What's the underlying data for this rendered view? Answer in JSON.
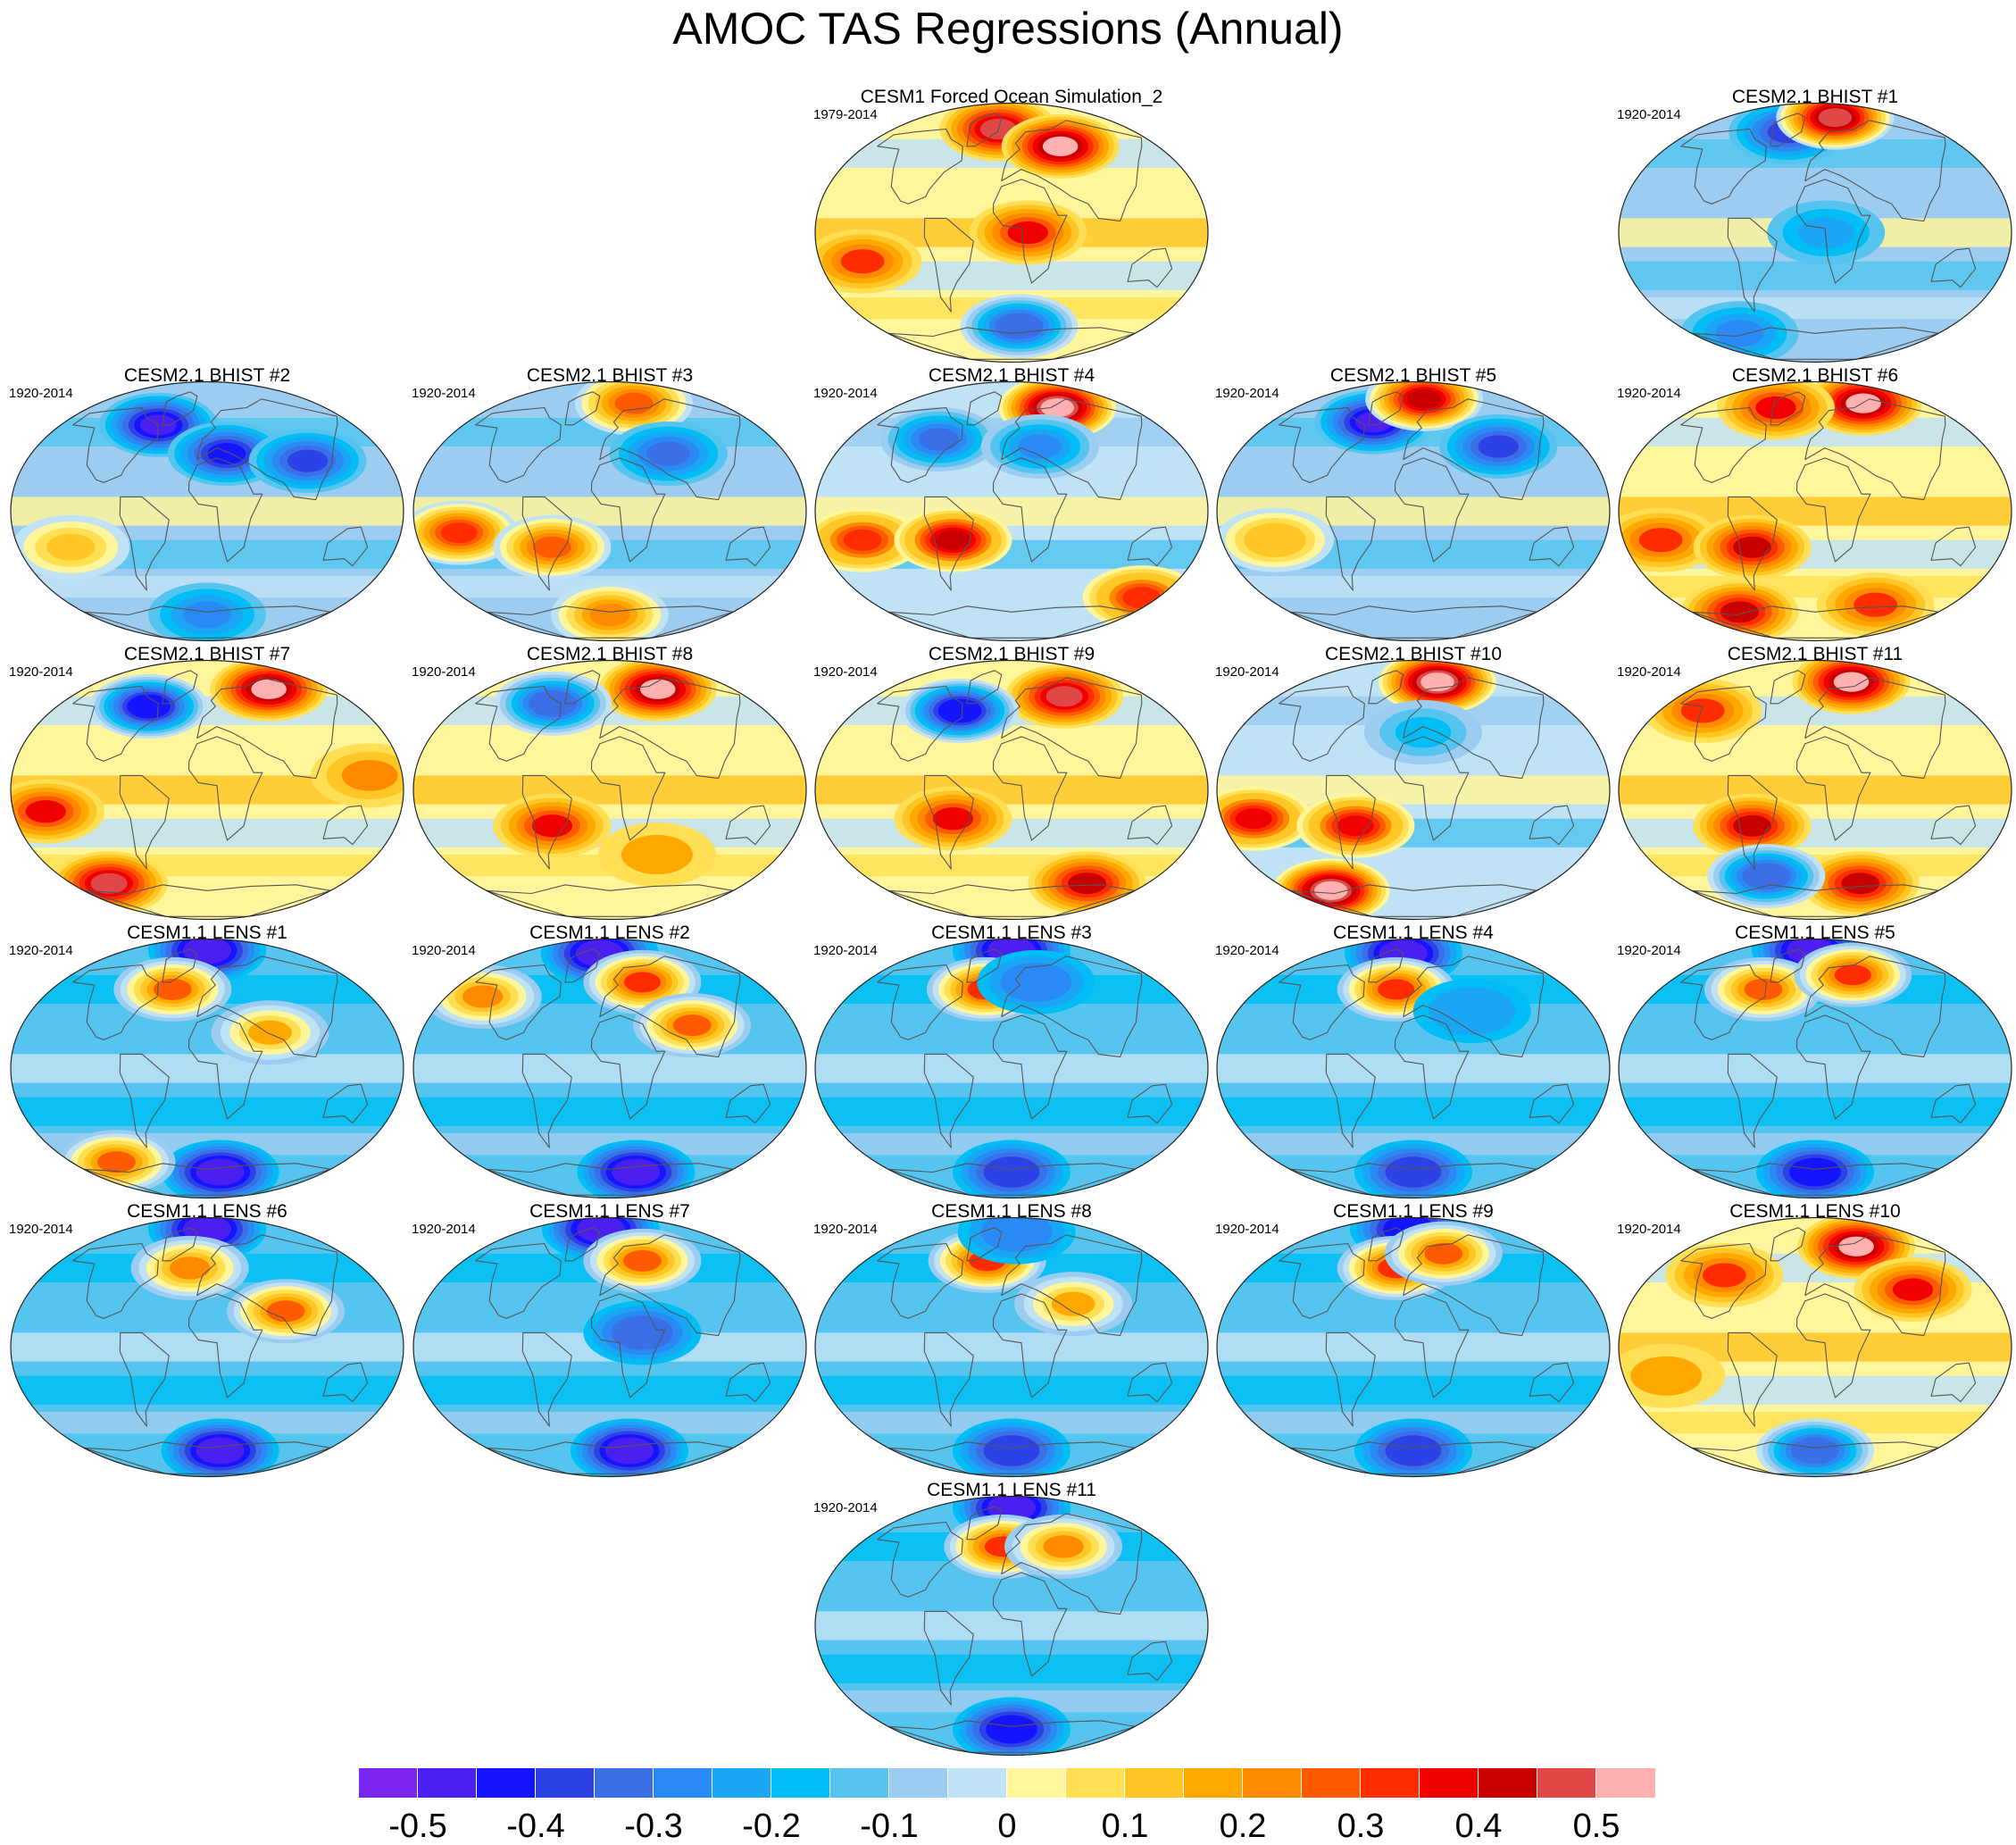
{
  "title": "AMOC TAS Regressions (Annual)",
  "panels": [
    {
      "title": "CESM1 Forced Ocean Simulation_2",
      "years": "1979-2014",
      "pattern": "warm",
      "hotspots": [
        {
          "lon": -20,
          "lat": 72,
          "v": 0.45
        },
        {
          "lon": 60,
          "lat": 60,
          "v": 0.5
        },
        {
          "lon": 15,
          "lat": 0,
          "v": 0.35
        },
        {
          "lon": -140,
          "lat": -20,
          "v": 0.3
        },
        {
          "lon": 10,
          "lat": -65,
          "v": -0.35
        }
      ]
    },
    {
      "title": "CESM2.1 BHIST #1",
      "years": "1920-2014",
      "pattern": "cold-north",
      "hotspots": [
        {
          "lon": -40,
          "lat": 70,
          "v": -0.4
        },
        {
          "lon": 40,
          "lat": 80,
          "v": 0.45
        },
        {
          "lon": 10,
          "lat": 0,
          "v": -0.25
        },
        {
          "lon": -110,
          "lat": -70,
          "v": -0.3
        }
      ]
    },
    {
      "title": "CESM2.1 BHIST #2",
      "years": "1920-2014",
      "pattern": "cold-north",
      "hotspots": [
        {
          "lon": -60,
          "lat": 60,
          "v": -0.5
        },
        {
          "lon": 20,
          "lat": 40,
          "v": -0.45
        },
        {
          "lon": 100,
          "lat": 35,
          "v": -0.4
        },
        {
          "lon": -130,
          "lat": -25,
          "v": 0.1
        },
        {
          "lon": 0,
          "lat": -72,
          "v": -0.3
        }
      ]
    },
    {
      "title": "CESM2.1 BHIST #3",
      "years": "1920-2014",
      "pattern": "cold-north",
      "hotspots": [
        {
          "lon": 40,
          "lat": 75,
          "v": 0.25
        },
        {
          "lon": -140,
          "lat": -15,
          "v": 0.3
        },
        {
          "lon": -55,
          "lat": -25,
          "v": 0.25
        },
        {
          "lon": 60,
          "lat": 40,
          "v": -0.35
        },
        {
          "lon": 0,
          "lat": -72,
          "v": 0.2
        }
      ]
    },
    {
      "title": "CESM2.1 BHIST #4",
      "years": "1920-2014",
      "pattern": "mixed",
      "hotspots": [
        {
          "lon": 70,
          "lat": 72,
          "v": 0.5
        },
        {
          "lon": -140,
          "lat": -20,
          "v": 0.3
        },
        {
          "lon": -55,
          "lat": -20,
          "v": 0.4
        },
        {
          "lon": -80,
          "lat": 50,
          "v": -0.35
        },
        {
          "lon": 30,
          "lat": 45,
          "v": -0.3
        },
        {
          "lon": 160,
          "lat": -60,
          "v": 0.3
        }
      ]
    },
    {
      "title": "CESM2.1 BHIST #5",
      "years": "1920-2014",
      "pattern": "cold-north",
      "hotspots": [
        {
          "lon": -50,
          "lat": 62,
          "v": -0.5
        },
        {
          "lon": 20,
          "lat": 78,
          "v": 0.4
        },
        {
          "lon": 90,
          "lat": 45,
          "v": -0.4
        },
        {
          "lon": -130,
          "lat": -20,
          "v": 0.15
        }
      ]
    },
    {
      "title": "CESM2.1 BHIST #6",
      "years": "1920-2014",
      "pattern": "warm",
      "hotspots": [
        {
          "lon": 80,
          "lat": 75,
          "v": 0.5
        },
        {
          "lon": -60,
          "lat": 72,
          "v": 0.35
        },
        {
          "lon": -145,
          "lat": -20,
          "v": 0.3
        },
        {
          "lon": -60,
          "lat": -25,
          "v": 0.4
        },
        {
          "lon": -110,
          "lat": -70,
          "v": 0.4
        },
        {
          "lon": 80,
          "lat": -65,
          "v": 0.3
        }
      ]
    },
    {
      "title": "CESM2.1 BHIST #7",
      "years": "1920-2014",
      "pattern": "warm",
      "hotspots": [
        {
          "lon": 90,
          "lat": 70,
          "v": 0.5
        },
        {
          "lon": -70,
          "lat": 58,
          "v": -0.45
        },
        {
          "lon": -150,
          "lat": -15,
          "v": 0.35
        },
        {
          "lon": -130,
          "lat": -65,
          "v": 0.45
        },
        {
          "lon": 150,
          "lat": 10,
          "v": 0.2
        }
      ]
    },
    {
      "title": "CESM2.1 BHIST #8",
      "years": "1920-2014",
      "pattern": "warm",
      "hotspots": [
        {
          "lon": 70,
          "lat": 70,
          "v": 0.5
        },
        {
          "lon": -70,
          "lat": 60,
          "v": -0.35
        },
        {
          "lon": -55,
          "lat": -25,
          "v": 0.35
        },
        {
          "lon": 50,
          "lat": -45,
          "v": 0.15
        }
      ]
    },
    {
      "title": "CESM2.1 BHIST #9",
      "years": "1920-2014",
      "pattern": "warm",
      "hotspots": [
        {
          "lon": 70,
          "lat": 65,
          "v": 0.45
        },
        {
          "lon": -60,
          "lat": 55,
          "v": -0.45
        },
        {
          "lon": -55,
          "lat": -20,
          "v": 0.35
        },
        {
          "lon": 100,
          "lat": -65,
          "v": 0.4
        }
      ]
    },
    {
      "title": "CESM2.1 BHIST #10",
      "years": "1920-2014",
      "pattern": "mixed",
      "hotspots": [
        {
          "lon": 40,
          "lat": 75,
          "v": 0.5
        },
        {
          "lon": -150,
          "lat": -20,
          "v": 0.35
        },
        {
          "lon": -120,
          "lat": -70,
          "v": 0.5
        },
        {
          "lon": -55,
          "lat": -25,
          "v": 0.35
        },
        {
          "lon": 10,
          "lat": 40,
          "v": -0.2
        }
      ]
    },
    {
      "title": "CESM2.1 BHIST #11",
      "years": "1920-2014",
      "pattern": "warm",
      "hotspots": [
        {
          "lon": 60,
          "lat": 75,
          "v": 0.5
        },
        {
          "lon": -130,
          "lat": 55,
          "v": 0.3
        },
        {
          "lon": -60,
          "lat": -25,
          "v": 0.4
        },
        {
          "lon": 60,
          "lat": -65,
          "v": 0.4
        },
        {
          "lon": -60,
          "lat": -60,
          "v": -0.35
        }
      ]
    },
    {
      "title": "CESM1.1 LENS #1",
      "years": "1920-2014",
      "pattern": "cold",
      "hotspots": [
        {
          "lon": 0,
          "lat": 82,
          "v": -0.5
        },
        {
          "lon": -40,
          "lat": 55,
          "v": 0.25
        },
        {
          "lon": 60,
          "lat": 25,
          "v": 0.15
        },
        {
          "lon": 20,
          "lat": -72,
          "v": -0.5
        },
        {
          "lon": -120,
          "lat": -65,
          "v": 0.25
        }
      ]
    },
    {
      "title": "CESM1.1 LENS #2",
      "years": "1920-2014",
      "pattern": "cold",
      "hotspots": [
        {
          "lon": -20,
          "lat": 80,
          "v": -0.5
        },
        {
          "lon": -140,
          "lat": 50,
          "v": 0.2
        },
        {
          "lon": 40,
          "lat": 60,
          "v": 0.3
        },
        {
          "lon": 80,
          "lat": 30,
          "v": 0.25
        },
        {
          "lon": 40,
          "lat": -72,
          "v": -0.5
        }
      ]
    },
    {
      "title": "CESM1.1 LENS #3",
      "years": "1920-2014",
      "pattern": "cold",
      "hotspots": [
        {
          "lon": 0,
          "lat": 82,
          "v": -0.5
        },
        {
          "lon": -30,
          "lat": 55,
          "v": 0.3
        },
        {
          "lon": 30,
          "lat": 60,
          "v": -0.3
        },
        {
          "lon": 0,
          "lat": -72,
          "v": -0.4
        }
      ]
    },
    {
      "title": "CESM1.1 LENS #4",
      "years": "1920-2014",
      "pattern": "cold",
      "hotspots": [
        {
          "lon": -20,
          "lat": 80,
          "v": -0.5
        },
        {
          "lon": -20,
          "lat": 55,
          "v": 0.3
        },
        {
          "lon": 60,
          "lat": 40,
          "v": -0.25
        },
        {
          "lon": 0,
          "lat": -72,
          "v": -0.4
        }
      ]
    },
    {
      "title": "CESM1.1 LENS #5",
      "years": "1920-2014",
      "pattern": "cold",
      "hotspots": [
        {
          "lon": -10,
          "lat": 82,
          "v": -0.5
        },
        {
          "lon": -60,
          "lat": 55,
          "v": 0.25
        },
        {
          "lon": 50,
          "lat": 65,
          "v": 0.3
        },
        {
          "lon": 0,
          "lat": -72,
          "v": -0.45
        }
      ]
    },
    {
      "title": "CESM1.1 LENS #6",
      "years": "1920-2014",
      "pattern": "cold",
      "hotspots": [
        {
          "lon": 0,
          "lat": 82,
          "v": -0.5
        },
        {
          "lon": -20,
          "lat": 55,
          "v": 0.2
        },
        {
          "lon": 75,
          "lat": 25,
          "v": 0.25
        },
        {
          "lon": 20,
          "lat": -72,
          "v": -0.5
        }
      ]
    },
    {
      "title": "CESM1.1 LENS #7",
      "years": "1920-2014",
      "pattern": "cold",
      "hotspots": [
        {
          "lon": -20,
          "lat": 82,
          "v": -0.5
        },
        {
          "lon": 40,
          "lat": 60,
          "v": 0.25
        },
        {
          "lon": 30,
          "lat": 10,
          "v": -0.35
        },
        {
          "lon": 30,
          "lat": -72,
          "v": -0.5
        }
      ]
    },
    {
      "title": "CESM1.1 LENS #8",
      "years": "1920-2014",
      "pattern": "cold",
      "hotspots": [
        {
          "lon": -30,
          "lat": 60,
          "v": 0.3
        },
        {
          "lon": 60,
          "lat": 30,
          "v": 0.15
        },
        {
          "lon": 10,
          "lat": 80,
          "v": -0.3
        },
        {
          "lon": 0,
          "lat": -72,
          "v": -0.4
        }
      ]
    },
    {
      "title": "CESM1.1 LENS #9",
      "years": "1920-2014",
      "pattern": "cold",
      "hotspots": [
        {
          "lon": -10,
          "lat": 82,
          "v": -0.45
        },
        {
          "lon": -20,
          "lat": 55,
          "v": 0.3
        },
        {
          "lon": 40,
          "lat": 65,
          "v": 0.25
        },
        {
          "lon": 0,
          "lat": -72,
          "v": -0.4
        }
      ]
    },
    {
      "title": "CESM1.1 LENS #10",
      "years": "1920-2014",
      "pattern": "warm",
      "hotspots": [
        {
          "lon": 60,
          "lat": 70,
          "v": 0.5
        },
        {
          "lon": -100,
          "lat": 50,
          "v": 0.3
        },
        {
          "lon": 100,
          "lat": 40,
          "v": 0.35
        },
        {
          "lon": -140,
          "lat": -20,
          "v": 0.15
        },
        {
          "lon": 0,
          "lat": -72,
          "v": -0.35
        }
      ]
    },
    {
      "title": "CESM1.1 LENS #11",
      "years": "1920-2014",
      "pattern": "cold",
      "hotspots": [
        {
          "lon": 0,
          "lat": 82,
          "v": -0.5
        },
        {
          "lon": -10,
          "lat": 55,
          "v": 0.3
        },
        {
          "lon": 60,
          "lat": 55,
          "v": 0.2
        },
        {
          "lon": 0,
          "lat": -72,
          "v": -0.45
        }
      ]
    }
  ],
  "colorbar": {
    "colors": [
      "#7b26f0",
      "#4a1ff0",
      "#1414ff",
      "#2c41e6",
      "#3a6fe6",
      "#2a8af5",
      "#1aa5f5",
      "#00bef5",
      "#55c5f0",
      "#9ccdf0",
      "#bfe2f5",
      "#fff59a",
      "#ffe055",
      "#ffc626",
      "#ffa800",
      "#ff8a00",
      "#ff5a00",
      "#ff2c00",
      "#f00000",
      "#c80000",
      "#e04848",
      "#ffb0b0"
    ],
    "labels": [
      "-0.5",
      "-0.4",
      "-0.3",
      "-0.2",
      "-0.1",
      "0",
      "0.1",
      "0.2",
      "0.3",
      "0.4",
      "0.5"
    ]
  }
}
